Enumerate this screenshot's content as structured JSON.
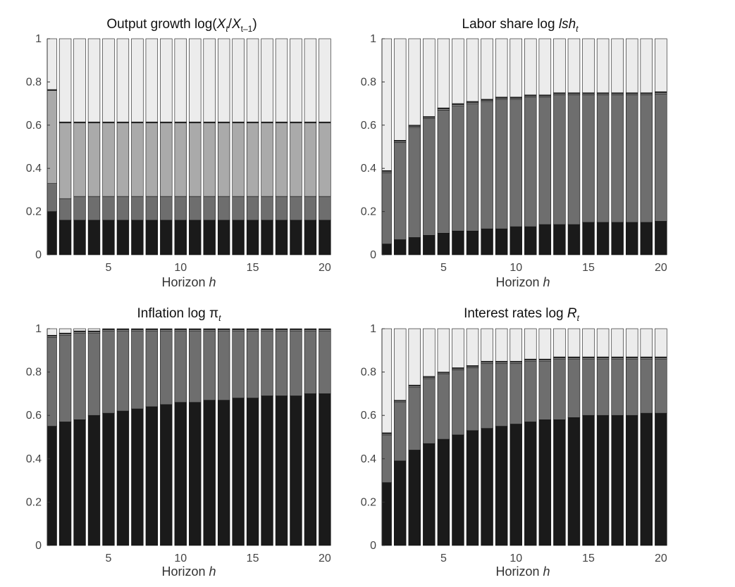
{
  "chart_data": [
    {
      "type": "bar",
      "stacked": true,
      "title": "Output growth log(",
      "title_parts": {
        "a": "Output growth log(",
        "b": "X",
        "c": "t",
        "d": "/",
        "e": "X",
        "f": "t–1",
        "g": ")"
      },
      "xlabel": "Horizon h",
      "ylim": [
        0,
        1
      ],
      "yticks": [
        "0",
        "0.2",
        "0.4",
        "0.6",
        "0.8",
        "1"
      ],
      "xticks": [
        "5",
        "10",
        "15",
        "20"
      ],
      "x": [
        1,
        2,
        3,
        4,
        5,
        6,
        7,
        8,
        9,
        10,
        11,
        12,
        13,
        14,
        15,
        16,
        17,
        18,
        19,
        20
      ],
      "series": [
        {
          "color": "#1a1a1a",
          "values": [
            0.2,
            0.16,
            0.16,
            0.16,
            0.16,
            0.16,
            0.16,
            0.16,
            0.16,
            0.16,
            0.16,
            0.16,
            0.16,
            0.16,
            0.16,
            0.16,
            0.16,
            0.16,
            0.16,
            0.16
          ]
        },
        {
          "color": "#6e6e6e",
          "values": [
            0.13,
            0.1,
            0.11,
            0.11,
            0.11,
            0.11,
            0.11,
            0.11,
            0.11,
            0.11,
            0.11,
            0.11,
            0.11,
            0.11,
            0.11,
            0.11,
            0.11,
            0.11,
            0.11,
            0.11
          ]
        },
        {
          "color": "#aaaaaa",
          "values": [
            0.43,
            0.35,
            0.34,
            0.34,
            0.34,
            0.34,
            0.34,
            0.34,
            0.34,
            0.34,
            0.34,
            0.34,
            0.34,
            0.34,
            0.34,
            0.34,
            0.34,
            0.34,
            0.34,
            0.34
          ]
        },
        {
          "color": "#3a3a3a",
          "values": [
            0.005,
            0.005,
            0.005,
            0.005,
            0.005,
            0.005,
            0.005,
            0.005,
            0.005,
            0.005,
            0.005,
            0.005,
            0.005,
            0.005,
            0.005,
            0.005,
            0.005,
            0.005,
            0.005,
            0.005
          ]
        },
        {
          "color": "#ececec",
          "values": [
            0.235,
            0.385,
            0.385,
            0.385,
            0.385,
            0.385,
            0.385,
            0.385,
            0.385,
            0.385,
            0.385,
            0.385,
            0.385,
            0.385,
            0.385,
            0.385,
            0.385,
            0.385,
            0.385,
            0.385
          ]
        }
      ]
    },
    {
      "type": "bar",
      "stacked": true,
      "title_parts": {
        "a": "Labor share log ",
        "b": "lsh",
        "c": "t"
      },
      "xlabel": "Horizon h",
      "ylim": [
        0,
        1
      ],
      "yticks": [
        "0",
        "0.2",
        "0.4",
        "0.6",
        "0.8",
        "1"
      ],
      "xticks": [
        "5",
        "10",
        "15",
        "20"
      ],
      "x": [
        1,
        2,
        3,
        4,
        5,
        6,
        7,
        8,
        9,
        10,
        11,
        12,
        13,
        14,
        15,
        16,
        17,
        18,
        19,
        20
      ],
      "series": [
        {
          "color": "#1a1a1a",
          "values": [
            0.05,
            0.07,
            0.08,
            0.09,
            0.1,
            0.11,
            0.11,
            0.12,
            0.12,
            0.13,
            0.13,
            0.14,
            0.14,
            0.14,
            0.15,
            0.15,
            0.15,
            0.15,
            0.15,
            0.155
          ]
        },
        {
          "color": "#6e6e6e",
          "values": [
            0.33,
            0.45,
            0.51,
            0.54,
            0.57,
            0.58,
            0.59,
            0.59,
            0.6,
            0.59,
            0.6,
            0.59,
            0.6,
            0.6,
            0.59,
            0.59,
            0.59,
            0.59,
            0.59,
            0.59
          ]
        },
        {
          "color": "#aaaaaa",
          "values": [
            0.005,
            0.005,
            0.005,
            0.005,
            0.005,
            0.005,
            0.005,
            0.005,
            0.005,
            0.005,
            0.005,
            0.005,
            0.005,
            0.005,
            0.005,
            0.005,
            0.005,
            0.005,
            0.005,
            0.005
          ]
        },
        {
          "color": "#3a3a3a",
          "values": [
            0.005,
            0.005,
            0.005,
            0.005,
            0.005,
            0.005,
            0.005,
            0.005,
            0.005,
            0.005,
            0.005,
            0.005,
            0.005,
            0.005,
            0.005,
            0.005,
            0.005,
            0.005,
            0.005,
            0.005
          ]
        },
        {
          "color": "#ececec",
          "values": [
            0.61,
            0.47,
            0.4,
            0.36,
            0.32,
            0.3,
            0.29,
            0.28,
            0.27,
            0.27,
            0.26,
            0.26,
            0.25,
            0.25,
            0.25,
            0.25,
            0.25,
            0.25,
            0.25,
            0.245
          ]
        }
      ]
    },
    {
      "type": "bar",
      "stacked": true,
      "title_parts": {
        "a": "Inflation log ",
        "b": "π",
        "c": "t"
      },
      "xlabel": "Horizon h",
      "ylim": [
        0,
        1
      ],
      "yticks": [
        "0",
        "0.2",
        "0.4",
        "0.6",
        "0.8",
        "1"
      ],
      "xticks": [
        "5",
        "10",
        "15",
        "20"
      ],
      "x": [
        1,
        2,
        3,
        4,
        5,
        6,
        7,
        8,
        9,
        10,
        11,
        12,
        13,
        14,
        15,
        16,
        17,
        18,
        19,
        20
      ],
      "series": [
        {
          "color": "#1a1a1a",
          "values": [
            0.55,
            0.57,
            0.58,
            0.6,
            0.61,
            0.62,
            0.63,
            0.64,
            0.65,
            0.66,
            0.66,
            0.67,
            0.67,
            0.68,
            0.68,
            0.69,
            0.69,
            0.69,
            0.7,
            0.7
          ]
        },
        {
          "color": "#6e6e6e",
          "values": [
            0.41,
            0.4,
            0.4,
            0.38,
            0.38,
            0.37,
            0.36,
            0.35,
            0.34,
            0.33,
            0.33,
            0.32,
            0.32,
            0.31,
            0.31,
            0.3,
            0.3,
            0.3,
            0.29,
            0.29
          ]
        },
        {
          "color": "#aaaaaa",
          "values": [
            0.005,
            0.005,
            0.005,
            0.005,
            0.005,
            0.005,
            0.005,
            0.005,
            0.005,
            0.005,
            0.005,
            0.005,
            0.005,
            0.005,
            0.005,
            0.005,
            0.005,
            0.005,
            0.005,
            0.005
          ]
        },
        {
          "color": "#3a3a3a",
          "values": [
            0.005,
            0.005,
            0.005,
            0.005,
            0.005,
            0.005,
            0.005,
            0.005,
            0.005,
            0.005,
            0.005,
            0.005,
            0.005,
            0.005,
            0.005,
            0.005,
            0.005,
            0.005,
            0.005,
            0.005
          ]
        },
        {
          "color": "#ececec",
          "values": [
            0.03,
            0.02,
            0.01,
            0.01,
            0.0,
            0.0,
            0.0,
            0.0,
            0.0,
            0.0,
            0.0,
            0.0,
            0.0,
            0.0,
            0.0,
            0.0,
            0.0,
            0.0,
            0.0,
            0.0
          ]
        }
      ]
    },
    {
      "type": "bar",
      "stacked": true,
      "title_parts": {
        "a": "Interest rates log ",
        "b": "R",
        "c": "t"
      },
      "xlabel": "Horizon h",
      "ylim": [
        0,
        1
      ],
      "yticks": [
        "0",
        "0.2",
        "0.4",
        "0.6",
        "0.8",
        "1"
      ],
      "xticks": [
        "5",
        "10",
        "15",
        "20"
      ],
      "x": [
        1,
        2,
        3,
        4,
        5,
        6,
        7,
        8,
        9,
        10,
        11,
        12,
        13,
        14,
        15,
        16,
        17,
        18,
        19,
        20
      ],
      "series": [
        {
          "color": "#1a1a1a",
          "values": [
            0.29,
            0.39,
            0.44,
            0.47,
            0.49,
            0.51,
            0.53,
            0.54,
            0.55,
            0.56,
            0.57,
            0.58,
            0.58,
            0.59,
            0.6,
            0.6,
            0.6,
            0.6,
            0.61,
            0.61
          ]
        },
        {
          "color": "#6e6e6e",
          "values": [
            0.22,
            0.27,
            0.29,
            0.3,
            0.3,
            0.3,
            0.29,
            0.3,
            0.29,
            0.28,
            0.28,
            0.27,
            0.28,
            0.27,
            0.26,
            0.26,
            0.26,
            0.26,
            0.25,
            0.25
          ]
        },
        {
          "color": "#aaaaaa",
          "values": [
            0.005,
            0.005,
            0.005,
            0.005,
            0.005,
            0.005,
            0.005,
            0.005,
            0.005,
            0.005,
            0.005,
            0.005,
            0.005,
            0.005,
            0.005,
            0.005,
            0.005,
            0.005,
            0.005,
            0.005
          ]
        },
        {
          "color": "#3a3a3a",
          "values": [
            0.005,
            0.005,
            0.005,
            0.005,
            0.005,
            0.005,
            0.005,
            0.005,
            0.005,
            0.005,
            0.005,
            0.005,
            0.005,
            0.005,
            0.005,
            0.005,
            0.005,
            0.005,
            0.005,
            0.005
          ]
        },
        {
          "color": "#ececec",
          "values": [
            0.48,
            0.33,
            0.26,
            0.22,
            0.2,
            0.18,
            0.17,
            0.15,
            0.15,
            0.15,
            0.14,
            0.14,
            0.13,
            0.13,
            0.13,
            0.13,
            0.13,
            0.13,
            0.13,
            0.13
          ]
        }
      ]
    }
  ]
}
